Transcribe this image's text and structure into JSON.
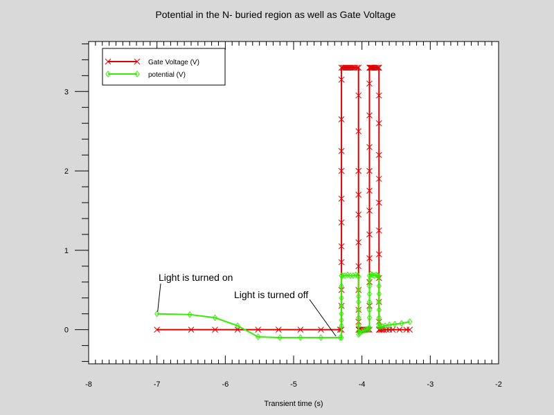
{
  "chart_data": {
    "type": "line",
    "title": "Potential in the N- buried region as well as Gate Voltage",
    "xlabel": "Transient time (s)",
    "ylabel": "",
    "xlim": [
      -8,
      -2
    ],
    "ylim": [
      -0.43,
      3.63
    ],
    "x_ticks": [
      -8,
      -7,
      -6,
      -5,
      -4,
      -3,
      -2
    ],
    "y_ticks": [
      0,
      1,
      2,
      3
    ],
    "grid": false,
    "legend_position": "top-left",
    "colors": {
      "background": "#d9d9d9",
      "plot_area": "#ffffff",
      "gate": "#dd0000",
      "potential": "#33ee00"
    },
    "series": [
      {
        "name": "Gate Voltage (V)",
        "marker": "x",
        "color": "#dd0000",
        "x": [
          -7.0,
          -6.5,
          -6.15,
          -5.82,
          -5.52,
          -5.22,
          -4.9,
          -4.6,
          -4.32,
          -4.3,
          -4.3,
          -4.3,
          -4.3,
          -4.3,
          -4.3,
          -4.3,
          -4.3,
          -4.3,
          -4.3,
          -4.3,
          -4.3,
          -4.28,
          -4.26,
          -4.24,
          -4.22,
          -4.2,
          -4.18,
          -4.16,
          -4.14,
          -4.12,
          -4.1,
          -4.07,
          -4.05,
          -4.05,
          -4.05,
          -4.05,
          -4.05,
          -4.05,
          -4.05,
          -4.05,
          -4.05,
          -4.05,
          -4.05,
          -4.05,
          -4.04,
          -4.03,
          -4.01,
          -3.99,
          -3.97,
          -3.95,
          -3.93,
          -3.91,
          -3.89,
          -3.89,
          -3.89,
          -3.89,
          -3.89,
          -3.89,
          -3.89,
          -3.89,
          -3.89,
          -3.89,
          -3.89,
          -3.89,
          -3.88,
          -3.87,
          -3.86,
          -3.85,
          -3.84,
          -3.82,
          -3.8,
          -3.78,
          -3.76,
          -3.75,
          -3.75,
          -3.75,
          -3.75,
          -3.75,
          -3.75,
          -3.75,
          -3.75,
          -3.75,
          -3.75,
          -3.75,
          -3.75,
          -3.74,
          -3.72,
          -3.7,
          -3.68,
          -3.64,
          -3.6,
          -3.55,
          -3.45,
          -3.35,
          -3.3
        ],
        "y": [
          0,
          0,
          0,
          0,
          0,
          0,
          0,
          0,
          0,
          0,
          0.3,
          0.5,
          0.85,
          1.05,
          1.35,
          1.65,
          2.0,
          2.25,
          2.65,
          3.15,
          3.3,
          3.3,
          3.3,
          3.3,
          3.3,
          3.3,
          3.3,
          3.3,
          3.3,
          3.3,
          3.3,
          3.3,
          3.3,
          2.95,
          2.5,
          2.0,
          1.7,
          1.45,
          1.1,
          0.8,
          0.5,
          0.25,
          0.1,
          0,
          0,
          0,
          0,
          0,
          0,
          0,
          0,
          0,
          0,
          0.3,
          0.6,
          0.9,
          1.2,
          1.5,
          1.75,
          2.0,
          2.3,
          2.7,
          3.1,
          3.3,
          3.3,
          3.3,
          3.3,
          3.3,
          3.3,
          3.3,
          3.3,
          3.3,
          3.3,
          3.3,
          2.95,
          2.6,
          2.2,
          1.9,
          1.6,
          1.25,
          0.95,
          0.65,
          0.35,
          0.1,
          0,
          0,
          0,
          0,
          0,
          0,
          0,
          0,
          0,
          0,
          0
        ]
      },
      {
        "name": "potential (V)",
        "marker": "diamond",
        "color": "#33ee00",
        "x": [
          -7.0,
          -6.52,
          -6.15,
          -5.82,
          -5.52,
          -5.2,
          -4.9,
          -4.6,
          -4.32,
          -4.3,
          -4.3,
          -4.3,
          -4.3,
          -4.3,
          -4.3,
          -4.3,
          -4.3,
          -4.28,
          -4.25,
          -4.21,
          -4.17,
          -4.13,
          -4.09,
          -4.06,
          -4.05,
          -4.05,
          -4.05,
          -4.05,
          -4.05,
          -4.05,
          -4.05,
          -4.05,
          -4.05,
          -4.03,
          -4.0,
          -3.97,
          -3.94,
          -3.91,
          -3.89,
          -3.89,
          -3.89,
          -3.89,
          -3.89,
          -3.89,
          -3.89,
          -3.89,
          -3.87,
          -3.85,
          -3.82,
          -3.79,
          -3.77,
          -3.75,
          -3.75,
          -3.75,
          -3.75,
          -3.75,
          -3.75,
          -3.75,
          -3.75,
          -3.73,
          -3.7,
          -3.66,
          -3.6,
          -3.52,
          -3.42,
          -3.3
        ],
        "y": [
          0.2,
          0.19,
          0.15,
          0.05,
          -0.09,
          -0.1,
          -0.1,
          -0.1,
          -0.1,
          -0.1,
          0.05,
          0.12,
          0.2,
          0.3,
          0.4,
          0.55,
          0.68,
          0.68,
          0.68,
          0.69,
          0.68,
          0.68,
          0.69,
          0.68,
          0.67,
          0.5,
          0.42,
          0.35,
          0.25,
          0.15,
          0.05,
          -0.02,
          -0.06,
          -0.04,
          -0.02,
          -0.01,
          0.0,
          0.01,
          0.02,
          0.15,
          0.25,
          0.35,
          0.45,
          0.55,
          0.62,
          0.68,
          0.7,
          0.69,
          0.68,
          0.69,
          0.68,
          0.67,
          0.55,
          0.45,
          0.35,
          0.25,
          0.15,
          0.08,
          0.04,
          0.04,
          0.04,
          0.05,
          0.06,
          0.07,
          0.08,
          0.1
        ]
      }
    ],
    "annotations": [
      {
        "text": "Light is turned on",
        "x": -7.0,
        "y": 0.2
      },
      {
        "text": "Light is turned off",
        "x": -4.32,
        "y": -0.1
      }
    ]
  }
}
